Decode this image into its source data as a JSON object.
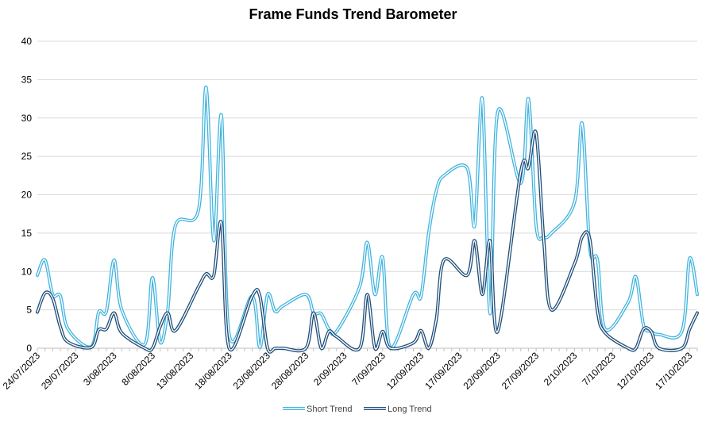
{
  "chart_data": {
    "type": "line",
    "title": "Frame Funds Trend Barometer",
    "xlabel": "",
    "ylabel": "",
    "ylim": [
      0,
      40
    ],
    "yticks": [
      0,
      5,
      10,
      15,
      20,
      25,
      30,
      35,
      40
    ],
    "grid": true,
    "legend": "bottom",
    "x_ticks": [
      "24/07/2023",
      "29/07/2023",
      "3/08/2023",
      "8/08/2023",
      "13/08/2023",
      "18/08/2023",
      "23/08/2023",
      "28/08/2023",
      "2/09/2023",
      "7/09/2023",
      "12/09/2023",
      "17/09/2023",
      "22/09/2023",
      "27/09/2023",
      "2/10/2023",
      "7/10/2023",
      "12/10/2023",
      "17/10/2023"
    ],
    "x": [
      "24/07/2023",
      "25/07/2023",
      "26/07/2023",
      "27/07/2023",
      "28/07/2023",
      "31/07/2023",
      "1/08/2023",
      "2/08/2023",
      "3/08/2023",
      "4/08/2023",
      "7/08/2023",
      "8/08/2023",
      "9/08/2023",
      "10/08/2023",
      "11/08/2023",
      "14/08/2023",
      "15/08/2023",
      "16/08/2023",
      "17/08/2023",
      "18/08/2023",
      "21/08/2023",
      "22/08/2023",
      "23/08/2023",
      "24/08/2023",
      "25/08/2023",
      "28/08/2023",
      "29/08/2023",
      "30/08/2023",
      "31/08/2023",
      "1/09/2023",
      "4/09/2023",
      "5/09/2023",
      "6/09/2023",
      "7/09/2023",
      "8/09/2023",
      "11/09/2023",
      "12/09/2023",
      "13/09/2023",
      "14/09/2023",
      "15/09/2023",
      "18/09/2023",
      "19/09/2023",
      "20/09/2023",
      "21/09/2023",
      "22/09/2023",
      "25/09/2023",
      "26/09/2023",
      "27/09/2023",
      "28/09/2023",
      "29/09/2023",
      "2/10/2023",
      "3/10/2023",
      "4/10/2023",
      "5/10/2023",
      "6/10/2023",
      "9/10/2023",
      "10/10/2023",
      "11/10/2023",
      "12/10/2023",
      "13/10/2023",
      "16/10/2023",
      "17/10/2023",
      "18/10/2023"
    ],
    "series": [
      {
        "name": "Short Trend",
        "color": "#41B4DE",
        "values": [
          9.5,
          11.5,
          7,
          6.8,
          2.5,
          0.2,
          4.7,
          4.8,
          11.5,
          5,
          0.5,
          9.2,
          0.8,
          5,
          16,
          18,
          34,
          14,
          30.3,
          1.8,
          6.8,
          0.1,
          7,
          4.8,
          5.5,
          7,
          4.6,
          4.5,
          2.5,
          2.2,
          8,
          13.8,
          7,
          11.8,
          0.1,
          7,
          6.8,
          15,
          20.5,
          22.5,
          23.5,
          16,
          32.5,
          4.5,
          30.8,
          21.5,
          32.5,
          16,
          14.5,
          15,
          19,
          29.3,
          13,
          11.5,
          2.5,
          6,
          9.3,
          3,
          2.2,
          1.8,
          2.2,
          11.7,
          7
        ]
      },
      {
        "name": "Long Trend",
        "color": "#1F4E79",
        "values": [
          4.7,
          7.2,
          6.5,
          2.8,
          0.8,
          0.1,
          2.4,
          2.5,
          4.6,
          2,
          0,
          0,
          2.8,
          4.6,
          2.3,
          8,
          9.7,
          9.5,
          16.3,
          0,
          6.8,
          6.8,
          0,
          0,
          0,
          0,
          4.6,
          0,
          2.2,
          1.5,
          0,
          7,
          0,
          2.2,
          0,
          0.7,
          2.3,
          0,
          3.8,
          11.5,
          9.5,
          14,
          7,
          14,
          2.2,
          23,
          23.5,
          28,
          14,
          5,
          11,
          14.5,
          14.2,
          4.8,
          2,
          0,
          0,
          2.5,
          2.2,
          0,
          0,
          2.5,
          4.6
        ]
      }
    ]
  }
}
